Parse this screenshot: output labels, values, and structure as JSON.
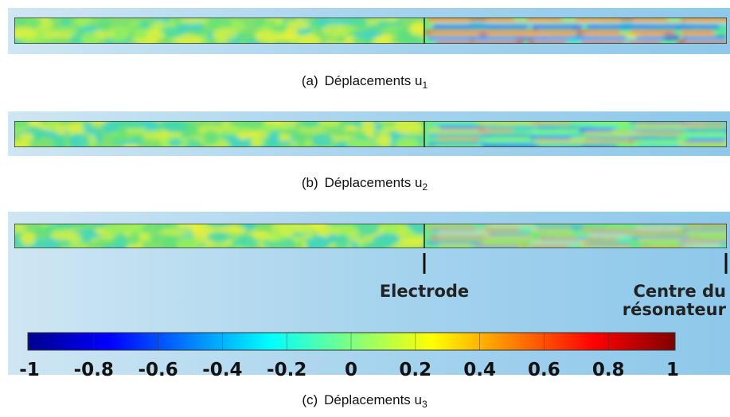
{
  "panels": [
    {
      "label": "(a)",
      "caption": "Déplacements u",
      "subscript": "1"
    },
    {
      "label": "(b)",
      "caption": "Déplacements u",
      "subscript": "2"
    },
    {
      "label": "(c)",
      "caption": "Déplacements u",
      "subscript": "3"
    }
  ],
  "annotations": {
    "electrode": "Electrode",
    "centre_line1": "Centre du",
    "centre_line2": "résonateur"
  },
  "colorbar": {
    "ticks": [
      -1,
      -0.8,
      -0.6,
      -0.4,
      -0.2,
      0,
      0.2,
      0.4,
      0.6,
      0.8,
      1
    ]
  }
}
